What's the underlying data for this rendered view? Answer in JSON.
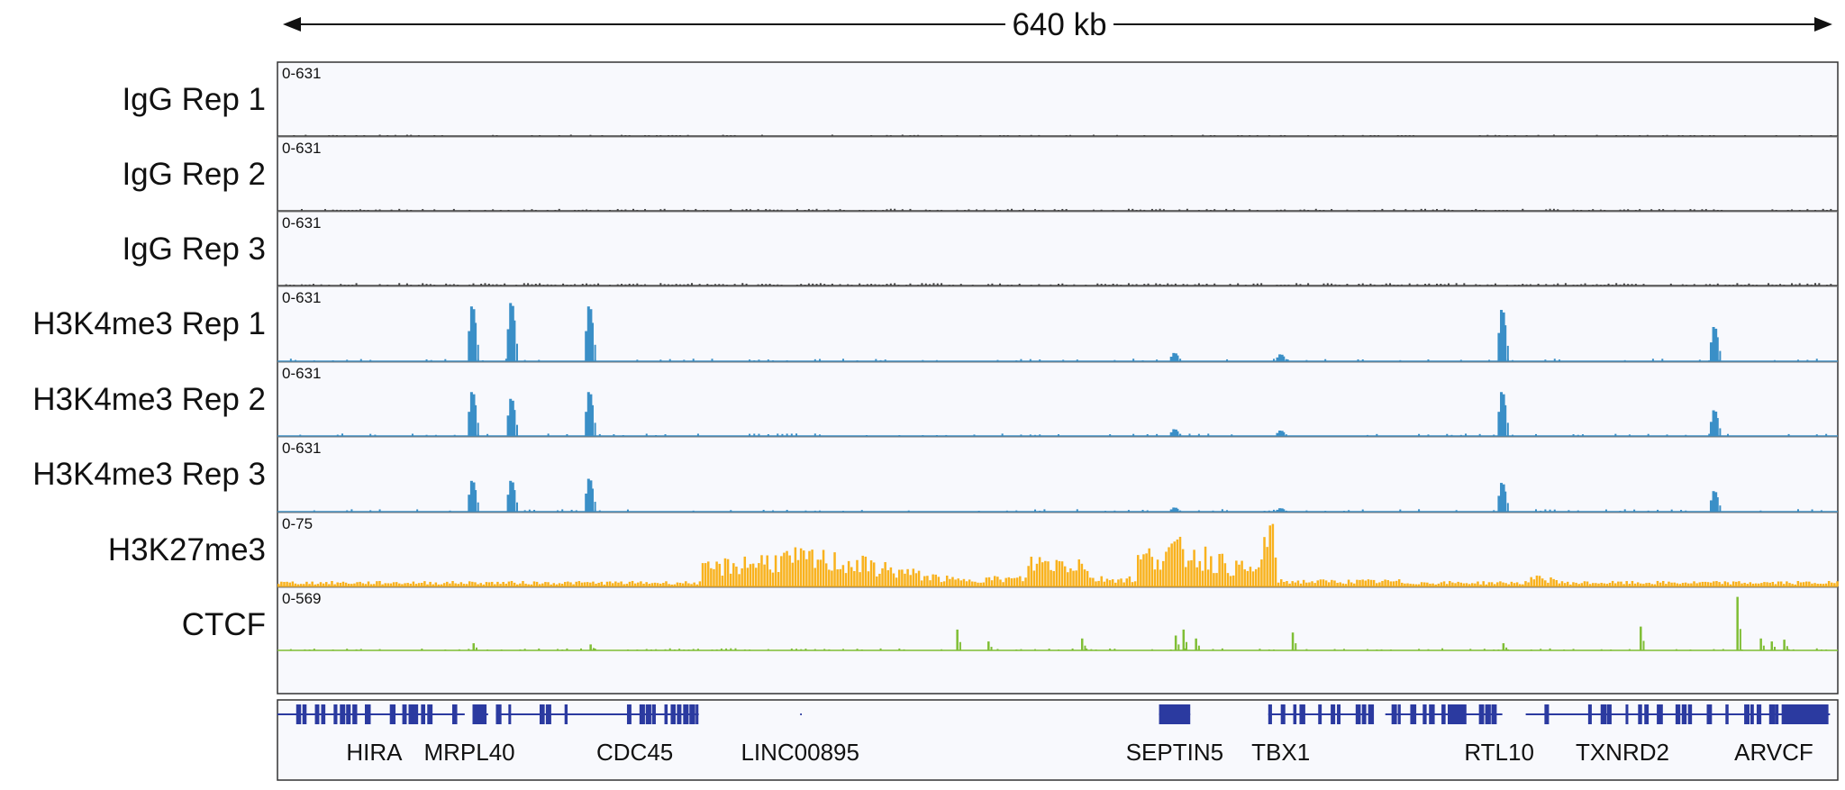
{
  "scale": {
    "label": "640 kb"
  },
  "colors": {
    "igg": "#444444",
    "h3k4me3": "#3a8fc7",
    "h3k27me3": "#f9b21d",
    "ctcf": "#7fbe35",
    "gene": "#2b3aa0",
    "panel_bg": "#f8f9fd",
    "border": "#333333"
  },
  "tracks": [
    {
      "id": "igg1",
      "label": "IgG Rep 1",
      "range": "0-631",
      "type": "igg",
      "color": "#444444",
      "peaks": [],
      "level": 0.012,
      "density": 0.25
    },
    {
      "id": "igg2",
      "label": "IgG Rep 2",
      "range": "0-631",
      "type": "igg",
      "color": "#444444",
      "peaks": [],
      "level": 0.018,
      "density": 0.5
    },
    {
      "id": "igg3",
      "label": "IgG Rep 3",
      "range": "0-631",
      "type": "igg",
      "color": "#444444",
      "peaks": [],
      "level": 0.022,
      "density": 0.65
    },
    {
      "id": "h3k4me3_1",
      "label": "H3K4me3 Rep 1",
      "range": "0-631",
      "type": "peaks",
      "color": "#3a8fc7",
      "peaks": [
        [
          0.125,
          0.8
        ],
        [
          0.15,
          0.85
        ],
        [
          0.2,
          0.8
        ],
        [
          0.575,
          0.12
        ],
        [
          0.643,
          0.1
        ],
        [
          0.785,
          0.75
        ],
        [
          0.921,
          0.5
        ]
      ]
    },
    {
      "id": "h3k4me3_2",
      "label": "H3K4me3 Rep 2",
      "range": "0-631",
      "type": "peaks",
      "color": "#3a8fc7",
      "peaks": [
        [
          0.125,
          0.65
        ],
        [
          0.15,
          0.55
        ],
        [
          0.2,
          0.65
        ],
        [
          0.575,
          0.1
        ],
        [
          0.643,
          0.08
        ],
        [
          0.785,
          0.65
        ],
        [
          0.921,
          0.38
        ]
      ]
    },
    {
      "id": "h3k4me3_3",
      "label": "H3K4me3 Rep 3",
      "range": "0-631",
      "type": "peaks",
      "color": "#3a8fc7",
      "peaks": [
        [
          0.125,
          0.45
        ],
        [
          0.15,
          0.45
        ],
        [
          0.2,
          0.48
        ],
        [
          0.575,
          0.06
        ],
        [
          0.643,
          0.05
        ],
        [
          0.785,
          0.42
        ],
        [
          0.921,
          0.3
        ]
      ]
    },
    {
      "id": "h3k27me3",
      "label": "H3K27me3",
      "range": "0-75",
      "type": "broad",
      "color": "#f9b21d",
      "peaks": []
    },
    {
      "id": "ctcf",
      "label": "CTCF",
      "range": "0-569",
      "type": "sparse",
      "color": "#7fbe35",
      "peaks": [
        [
          0.125,
          0.12
        ],
        [
          0.2,
          0.1
        ],
        [
          0.435,
          0.35
        ],
        [
          0.455,
          0.15
        ],
        [
          0.515,
          0.2
        ],
        [
          0.575,
          0.25
        ],
        [
          0.58,
          0.35
        ],
        [
          0.588,
          0.2
        ],
        [
          0.65,
          0.3
        ],
        [
          0.785,
          0.12
        ],
        [
          0.873,
          0.4
        ],
        [
          0.935,
          0.9
        ],
        [
          0.95,
          0.2
        ],
        [
          0.957,
          0.15
        ],
        [
          0.965,
          0.18
        ]
      ]
    }
  ],
  "genes": [
    {
      "name": "HIRA",
      "pos": 0.062
    },
    {
      "name": "MRPL40",
      "pos": 0.123
    },
    {
      "name": "CDC45",
      "pos": 0.229
    },
    {
      "name": "LINC00895",
      "pos": 0.335
    },
    {
      "name": "SEPTIN5",
      "pos": 0.575
    },
    {
      "name": "TBX1",
      "pos": 0.643
    },
    {
      "name": "RTL10",
      "pos": 0.783
    },
    {
      "name": "TXNRD2",
      "pos": 0.862
    },
    {
      "name": "ARVCF",
      "pos": 0.959
    }
  ]
}
